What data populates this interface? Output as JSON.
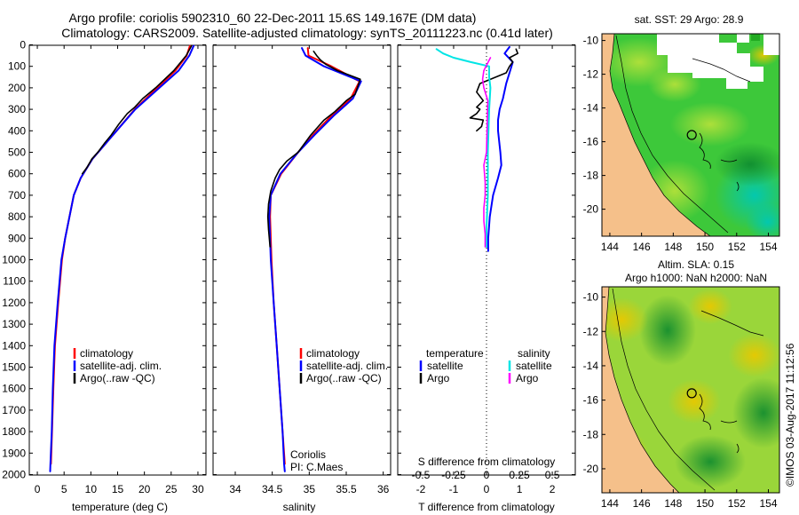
{
  "colors": {
    "climatology": "#ff0000",
    "satellite": "#0000ff",
    "argo": "#000000",
    "salinity_satellite": "#00e5e5",
    "salinity_argo": "#ff00ff",
    "land": "#f5c08a",
    "sea_green": "#33cc33",
    "sea_yellow": "#e6d21a",
    "sea_cyan": "#22ccb0"
  },
  "header": {
    "line1": "Argo profile: coriolis 5902310_60 22-Dec-2011 15.6S 149.167E (DM data)",
    "line2": "Climatology: CARS2009. Satellite-adjusted climatology: synTS_20111223.nc (0.41d later)"
  },
  "stamp": "©IMOS 03-Aug-2017 11:12:56",
  "depth_ticks": [
    "0",
    "100",
    "200",
    "300",
    "400",
    "500",
    "600",
    "700",
    "800",
    "900",
    "1000",
    "1100",
    "1200",
    "1300",
    "1400",
    "1500",
    "1600",
    "1700",
    "1800",
    "1900",
    "2000"
  ],
  "chart_data": [
    {
      "type": "line",
      "id": "temperature",
      "xlabel": "temperature (deg C)",
      "ylabel": "depth",
      "xlim": [
        -1.5,
        31.5
      ],
      "ylim": [
        0,
        2060
      ],
      "xticks": [
        "0",
        "5",
        "10",
        "15",
        "20",
        "25",
        "30"
      ],
      "legend": {
        "location": "lower-center",
        "entries": [
          "climatology",
          "satellite-adj. clim.",
          "Argo(..raw -QC)"
        ]
      },
      "series": [
        {
          "name": "climatology",
          "x": [
            28.5,
            27.9,
            25.8,
            22.4,
            18.2,
            14.8,
            12.4,
            10.3,
            8.1,
            6.8,
            5.2,
            4.6,
            3.9,
            3.3,
            3.0,
            2.75,
            2.55
          ],
          "y": [
            5,
            50,
            120,
            200,
            300,
            400,
            470,
            530,
            620,
            700,
            900,
            1000,
            1200,
            1400,
            1600,
            1800,
            1950
          ]
        },
        {
          "name": "satellite-adj. clim.",
          "x": [
            29.2,
            28.4,
            26.4,
            22.8,
            18.3,
            14.8,
            12.4,
            10.3,
            8.1,
            6.8,
            5.2,
            4.5,
            3.8,
            3.2,
            2.9,
            2.7,
            2.45,
            2.4
          ],
          "y": [
            5,
            50,
            120,
            200,
            300,
            400,
            470,
            530,
            620,
            700,
            900,
            1000,
            1200,
            1400,
            1600,
            1800,
            1950,
            1985
          ]
        },
        {
          "name": "Argo",
          "x": [
            28.8,
            27.8,
            25.5,
            22.1,
            19.7,
            18.2,
            16.8,
            15.2,
            13.8,
            12.5,
            11.3,
            10.2,
            9.3,
            8.4
          ],
          "y": [
            5,
            50,
            120,
            200,
            250,
            290,
            320,
            370,
            420,
            460,
            500,
            530,
            570,
            600
          ]
        }
      ]
    },
    {
      "type": "line",
      "id": "salinity",
      "xlabel": "salinity",
      "xlim": [
        33.7,
        36.1
      ],
      "ylim": [
        0,
        2060
      ],
      "xticks": [
        "34",
        "34.5",
        "35",
        "35.5",
        "36"
      ],
      "legend": {
        "location": "lower-center",
        "entries": [
          "climatology",
          "satellite-adj. clim.",
          "Argo(..raw -QC)"
        ]
      },
      "annotation": {
        "line1": "Coriolis",
        "line2": "PI: C.Maes"
      },
      "series": [
        {
          "name": "climatology",
          "x": [
            34.98,
            34.99,
            35.3,
            35.68,
            35.56,
            35.3,
            35.05,
            34.85,
            34.62,
            34.48,
            34.47,
            34.49,
            34.52,
            34.56,
            34.6,
            34.64,
            34.67
          ],
          "y": [
            15,
            50,
            100,
            170,
            250,
            330,
            420,
            500,
            600,
            700,
            800,
            1000,
            1200,
            1400,
            1600,
            1800,
            1950
          ]
        },
        {
          "name": "satellite-adj. clim.",
          "x": [
            34.9,
            34.95,
            35.2,
            35.7,
            35.59,
            35.33,
            35.07,
            34.85,
            34.61,
            34.48,
            34.46,
            34.48,
            34.52,
            34.56,
            34.6,
            34.64,
            34.66,
            34.67
          ],
          "y": [
            15,
            50,
            100,
            170,
            250,
            330,
            420,
            500,
            600,
            700,
            800,
            1000,
            1200,
            1400,
            1600,
            1800,
            1950,
            1985
          ]
        },
        {
          "name": "Argo",
          "x": [
            35.06,
            35.1,
            35.15,
            35.22,
            35.38,
            35.69,
            35.62,
            35.5,
            35.35,
            35.2,
            35.02,
            34.85,
            34.7,
            34.6,
            34.54,
            34.48,
            34.45,
            34.44,
            34.45,
            34.47
          ],
          "y": [
            30,
            50,
            70,
            90,
            120,
            160,
            230,
            260,
            310,
            350,
            420,
            500,
            540,
            580,
            620,
            680,
            740,
            800,
            860,
            940
          ]
        }
      ]
    },
    {
      "type": "line",
      "id": "difference",
      "xlabel": "T difference from climatology",
      "xlabel_top": "S difference from climatology",
      "xlim": [
        -2.7,
        2.7
      ],
      "ylim": [
        0,
        2060
      ],
      "xticks": [
        "-2",
        "-1",
        "0",
        "1",
        "2"
      ],
      "xticks_top": [
        "-0.5",
        "-0.25",
        "0",
        "0.25",
        "0.5"
      ],
      "legend": {
        "location": "lower-center",
        "temperature_title": "temperature",
        "salinity_title": "salinity",
        "entries": [
          "satellite",
          "Argo",
          "satellite",
          "Argo"
        ]
      },
      "series": [
        {
          "name": "temperature satellite",
          "x": [
            0.7,
            0.55,
            0.8,
            0.72,
            0.6,
            0.5,
            0.4,
            0.35,
            0.35,
            0.42,
            0.45,
            0.35,
            0.2,
            0.1,
            0.05,
            0.05
          ],
          "y": [
            10,
            40,
            80,
            120,
            180,
            250,
            300,
            350,
            400,
            500,
            560,
            620,
            700,
            800,
            900,
            960
          ]
        },
        {
          "name": "temperature Argo",
          "x": [
            0.9,
            0.95,
            0.7,
            0.8,
            0.7,
            0.6,
            -0.2,
            -0.3,
            -0.1,
            -0.3,
            -0.2,
            -0.3,
            -0.5,
            -0.1,
            -0.15,
            -0.3
          ],
          "y": [
            20,
            40,
            60,
            80,
            100,
            130,
            180,
            220,
            260,
            290,
            300,
            320,
            340,
            350,
            380,
            400
          ]
        },
        {
          "name": "salinity satellite",
          "x": [
            -0.38,
            -0.33,
            -0.25,
            -0.12,
            0.02,
            0.02,
            0.03,
            0.02,
            0.01,
            0.01,
            0.0,
            0.0
          ],
          "y": [
            20,
            40,
            60,
            80,
            100,
            150,
            200,
            300,
            500,
            700,
            850,
            940
          ]
        },
        {
          "name": "salinity Argo",
          "x": [
            0.03,
            -0.02,
            -0.03,
            -0.02,
            0.01,
            0.0,
            -0.02,
            -0.01,
            -0.01,
            -0.02,
            -0.02,
            -0.01,
            -0.01
          ],
          "y": [
            60,
            120,
            160,
            200,
            260,
            500,
            560,
            640,
            700,
            760,
            820,
            880,
            940
          ]
        }
      ]
    },
    {
      "type": "heatmap",
      "id": "sst-map",
      "title": "sat. SST: 29 Argo: 28.9",
      "xlim": [
        143.5,
        154.7
      ],
      "ylim": [
        -21.6,
        -9.6
      ],
      "xticks": [
        "144",
        "146",
        "148",
        "150",
        "152",
        "154"
      ],
      "yticks": [
        "-10",
        "-12",
        "-14",
        "-16",
        "-18",
        "-20"
      ],
      "marker": {
        "lon": 149.167,
        "lat": -15.6
      }
    },
    {
      "type": "heatmap",
      "id": "sla-map",
      "title_line1": "Altim. SLA: 0.15",
      "title_line2": "Argo h1000: NaN h2000: NaN",
      "xlim": [
        143.5,
        154.7
      ],
      "ylim": [
        -21.4,
        -9.4
      ],
      "xticks": [
        "144",
        "146",
        "148",
        "150",
        "152",
        "154"
      ],
      "yticks": [
        "-10",
        "-12",
        "-14",
        "-16",
        "-18",
        "-20"
      ],
      "marker": {
        "lon": 149.167,
        "lat": -15.6
      }
    }
  ]
}
